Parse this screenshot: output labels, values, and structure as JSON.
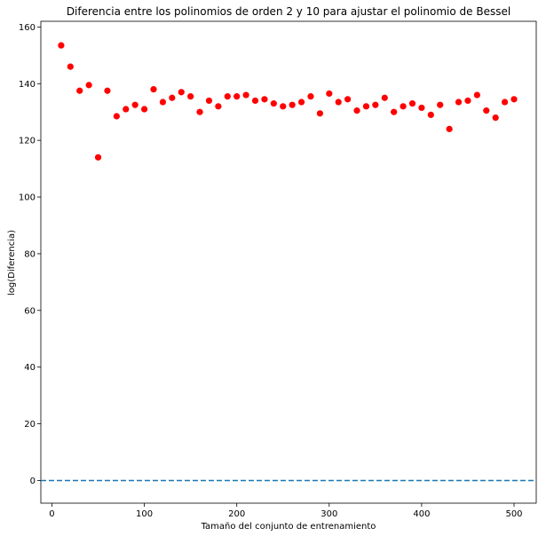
{
  "chart_data": {
    "type": "scatter",
    "title": "Diferencia entre los polinomios de orden 2 y 10 para ajustar el polinomio de Bessel",
    "xlabel": "Tamaño del conjunto de entrenamiento",
    "ylabel": "log(Diferencia)",
    "xlim": [
      -12,
      524
    ],
    "ylim": [
      -8,
      162
    ],
    "xticks": [
      0,
      100,
      200,
      300,
      400,
      500
    ],
    "yticks": [
      0,
      20,
      40,
      60,
      80,
      100,
      120,
      140,
      160
    ],
    "grid": false,
    "point_color": "#ff0000",
    "reference_line": {
      "y": 0,
      "style": "dashed",
      "color": "#1f77b4"
    },
    "x": [
      10,
      20,
      30,
      40,
      50,
      60,
      70,
      80,
      90,
      100,
      110,
      120,
      130,
      140,
      150,
      160,
      170,
      180,
      190,
      200,
      210,
      220,
      230,
      240,
      250,
      260,
      270,
      280,
      290,
      300,
      310,
      320,
      330,
      340,
      350,
      360,
      370,
      380,
      390,
      400,
      410,
      420,
      430,
      440,
      450,
      460,
      470,
      480,
      490,
      500
    ],
    "y": [
      153.5,
      146,
      137.5,
      139.5,
      114,
      137.5,
      128.5,
      131,
      132.5,
      131,
      138,
      133.5,
      135,
      137,
      135.5,
      130,
      134,
      132,
      135.5,
      135.5,
      136,
      134,
      134.5,
      133,
      132,
      132.5,
      133.5,
      135.5,
      129.5,
      136.5,
      133.5,
      134.5,
      130.5,
      132,
      132.5,
      135,
      130,
      132,
      133,
      131.5,
      129,
      132.5,
      124,
      133.5,
      134,
      136,
      130.5,
      128,
      133.5,
      134.5
    ]
  }
}
